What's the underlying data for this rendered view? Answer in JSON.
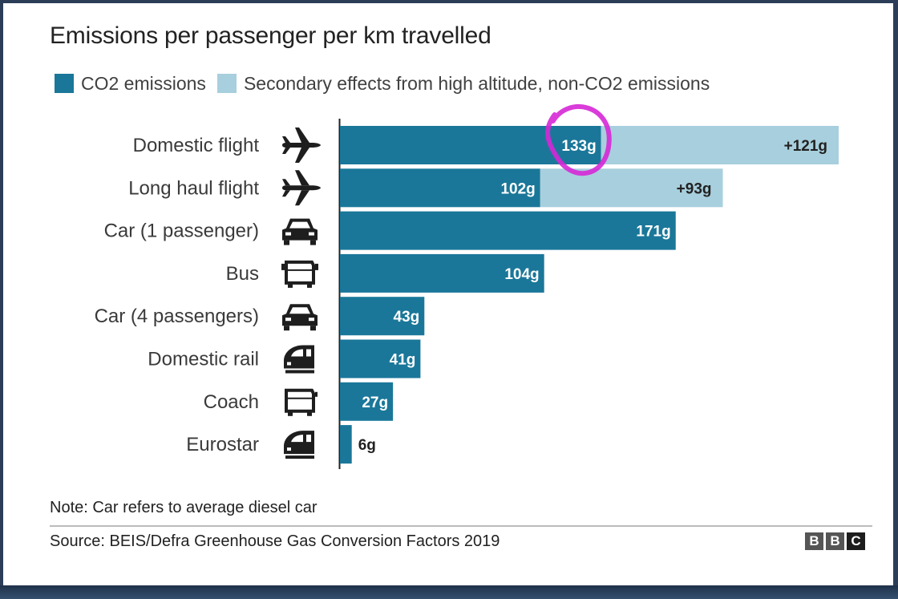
{
  "chart_data": {
    "type": "bar",
    "orientation": "horizontal",
    "stacked": true,
    "title": "Emissions per passenger per km travelled",
    "categories": [
      "Domestic flight",
      "Long haul flight",
      "Car (1 passenger)",
      "Bus",
      "Car (4 passengers)",
      "Domestic rail",
      "Coach",
      "Eurostar"
    ],
    "icons": [
      "plane-icon",
      "plane-icon",
      "car-icon",
      "bus-icon",
      "car-icon",
      "train-icon",
      "coach-icon",
      "train-icon"
    ],
    "series": [
      {
        "name": "CO2 emissions",
        "color": "#1a7799",
        "values": [
          133,
          102,
          171,
          104,
          43,
          41,
          27,
          6
        ],
        "labels": [
          "133g",
          "102g",
          "171g",
          "104g",
          "43g",
          "41g",
          "27g",
          "6g"
        ]
      },
      {
        "name": "Secondary effects from high altitude, non-CO2 emissions",
        "color": "#a8cfdd",
        "values": [
          121,
          93,
          0,
          0,
          0,
          0,
          0,
          0
        ],
        "labels": [
          "+121g",
          "+93g",
          "",
          "",
          "",
          "",
          "",
          ""
        ]
      }
    ],
    "xlim": [
      0,
      254
    ],
    "grid": false,
    "legend_position": "top",
    "annotation": "magenta hand-drawn circle around 133g"
  },
  "note": "Note: Car refers to average diesel car",
  "source": "Source: BEIS/Defra Greenhouse Gas Conversion Factors 2019",
  "logo_letters": [
    "B",
    "B",
    "C"
  ]
}
